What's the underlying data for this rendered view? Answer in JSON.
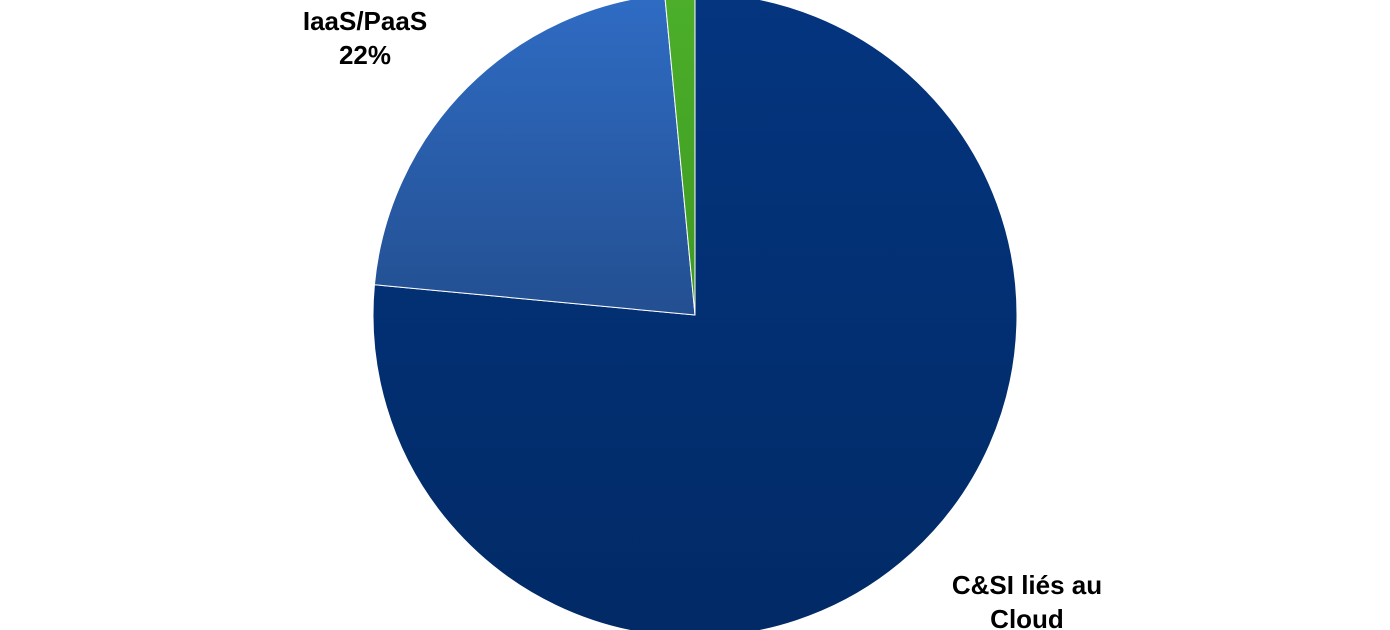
{
  "chart_data": {
    "type": "pie",
    "start_angle": "12 o'clock",
    "direction": "clockwise",
    "slices": [
      {
        "label_lines": [
          "C&SI liés au",
          "Cloud"
        ],
        "value": 76.5,
        "color": "#04357f",
        "color_dark": "#012a66"
      },
      {
        "label_lines": [
          "IaaS/PaaS",
          "22%"
        ],
        "value": 22,
        "color": "#2f6cc4",
        "color_dark": "#234f91"
      },
      {
        "label_lines": [],
        "value": 1.5,
        "color": "#4caf2a",
        "color_dark": "#3e9a22"
      }
    ]
  }
}
